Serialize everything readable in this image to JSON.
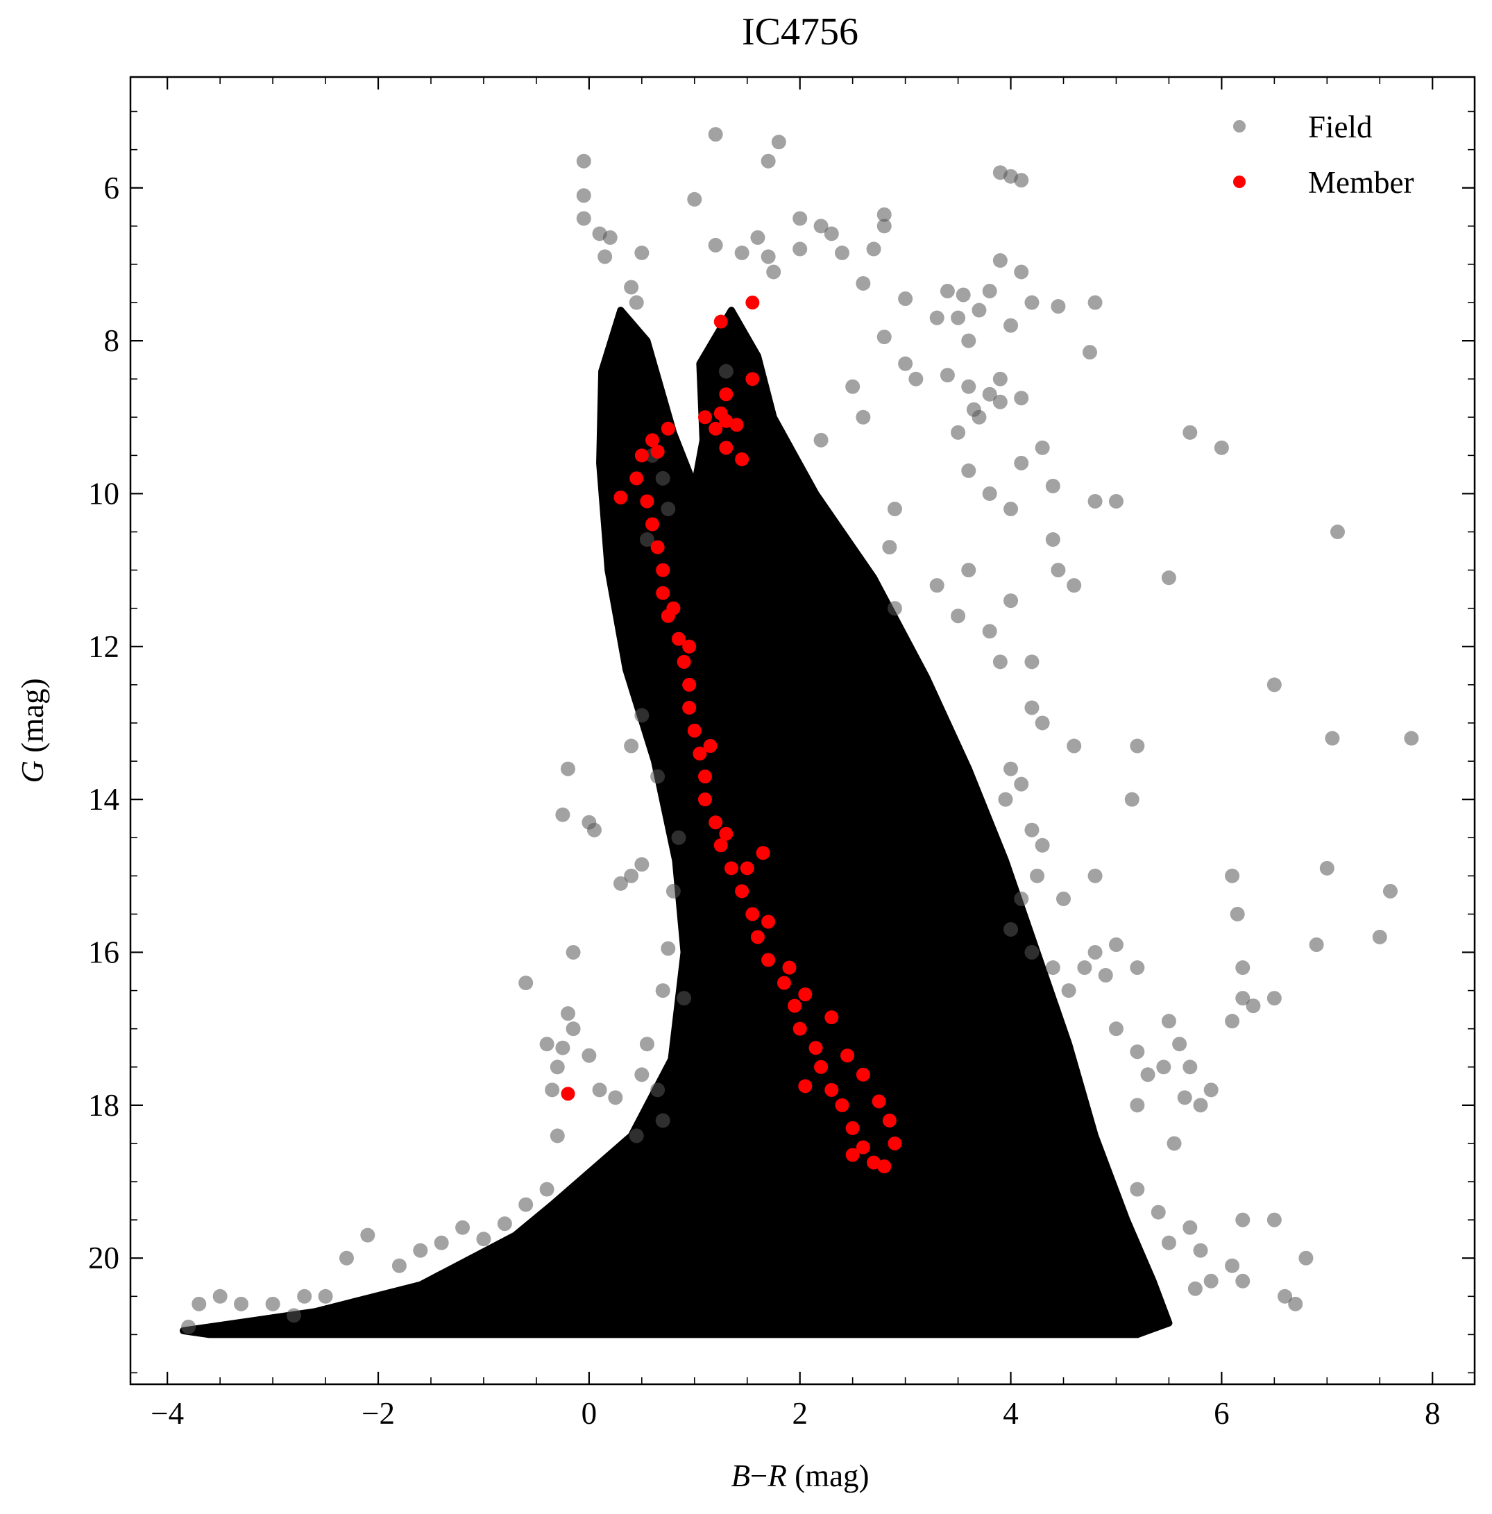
{
  "chart_data": {
    "type": "scatter",
    "title": "IC4756",
    "xlabel_italic": "B",
    "xlabel_minus": "−",
    "xlabel_italic2": "R",
    "xlabel_unit": " (mag)",
    "ylabel_italic": "G",
    "ylabel_unit": " (mag)",
    "xlim": [
      -4.35,
      8.4
    ],
    "ylim": [
      21.65,
      4.55
    ],
    "y_inverted": true,
    "xticks": [
      -4,
      -2,
      0,
      2,
      4,
      6,
      8
    ],
    "xtick_labels": [
      "−4",
      "−2",
      "0",
      "2",
      "4",
      "6",
      "8"
    ],
    "yticks": [
      6,
      8,
      10,
      12,
      14,
      16,
      18,
      20
    ],
    "ytick_labels": [
      "6",
      "8",
      "10",
      "12",
      "14",
      "16",
      "18",
      "20"
    ],
    "grid": false,
    "legend_position": "top-right",
    "colors": {
      "field": "#555555",
      "member": "#ff0000"
    },
    "series": [
      {
        "name": "Field",
        "alpha": 0.55,
        "dense_region": {
          "polygon": [
            [
              -3.85,
              20.95
            ],
            [
              -2.6,
              20.7
            ],
            [
              -1.6,
              20.35
            ],
            [
              -0.7,
              19.7
            ],
            [
              -0.35,
              19.3
            ],
            [
              0.4,
              18.4
            ],
            [
              0.78,
              17.4
            ],
            [
              0.9,
              16.0
            ],
            [
              0.82,
              14.8
            ],
            [
              0.62,
              13.5
            ],
            [
              0.35,
              12.3
            ],
            [
              0.18,
              11.0
            ],
            [
              0.1,
              9.6
            ],
            [
              0.12,
              8.4
            ],
            [
              0.3,
              7.6
            ],
            [
              0.55,
              8.0
            ],
            [
              0.8,
              9.2
            ],
            [
              1.0,
              9.9
            ],
            [
              1.08,
              9.3
            ],
            [
              1.05,
              8.3
            ],
            [
              1.35,
              7.6
            ],
            [
              1.6,
              8.2
            ],
            [
              1.75,
              9.0
            ],
            [
              2.15,
              10.0
            ],
            [
              2.7,
              11.1
            ],
            [
              3.2,
              12.4
            ],
            [
              3.6,
              13.6
            ],
            [
              3.95,
              14.8
            ],
            [
              4.25,
              16.0
            ],
            [
              4.55,
              17.2
            ],
            [
              4.8,
              18.4
            ],
            [
              5.1,
              19.5
            ],
            [
              5.35,
              20.3
            ],
            [
              5.5,
              20.85
            ],
            [
              5.2,
              21.0
            ],
            [
              -3.6,
              21.0
            ]
          ]
        },
        "points": [
          [
            -0.05,
            5.65
          ],
          [
            -0.05,
            6.1
          ],
          [
            -0.05,
            6.4
          ],
          [
            0.1,
            6.6
          ],
          [
            0.2,
            6.65
          ],
          [
            0.15,
            6.9
          ],
          [
            0.4,
            7.3
          ],
          [
            0.45,
            7.5
          ],
          [
            0.5,
            6.85
          ],
          [
            1.2,
            5.3
          ],
          [
            1.8,
            5.4
          ],
          [
            1.7,
            5.65
          ],
          [
            1.0,
            6.15
          ],
          [
            1.2,
            6.75
          ],
          [
            1.6,
            6.65
          ],
          [
            1.45,
            6.85
          ],
          [
            1.7,
            6.9
          ],
          [
            1.75,
            7.1
          ],
          [
            2.0,
            6.8
          ],
          [
            2.0,
            6.4
          ],
          [
            2.2,
            6.5
          ],
          [
            2.3,
            6.6
          ],
          [
            2.4,
            6.85
          ],
          [
            2.7,
            6.8
          ],
          [
            2.8,
            6.5
          ],
          [
            2.8,
            6.35
          ],
          [
            2.6,
            7.25
          ],
          [
            3.0,
            7.45
          ],
          [
            3.3,
            7.7
          ],
          [
            3.4,
            7.35
          ],
          [
            3.5,
            7.7
          ],
          [
            3.55,
            7.4
          ],
          [
            3.7,
            7.6
          ],
          [
            3.6,
            8.0
          ],
          [
            3.8,
            7.35
          ],
          [
            4.0,
            7.8
          ],
          [
            4.2,
            7.5
          ],
          [
            4.45,
            7.55
          ],
          [
            4.8,
            7.5
          ],
          [
            4.75,
            8.15
          ],
          [
            3.9,
            5.8
          ],
          [
            4.0,
            5.85
          ],
          [
            4.1,
            5.9
          ],
          [
            3.9,
            6.95
          ],
          [
            4.1,
            7.1
          ],
          [
            3.0,
            8.3
          ],
          [
            3.1,
            8.5
          ],
          [
            3.4,
            8.45
          ],
          [
            3.6,
            8.6
          ],
          [
            3.65,
            8.9
          ],
          [
            3.9,
            8.5
          ],
          [
            3.8,
            8.7
          ],
          [
            3.9,
            8.8
          ],
          [
            4.1,
            8.75
          ],
          [
            3.7,
            9.0
          ],
          [
            3.5,
            9.2
          ],
          [
            4.1,
            9.6
          ],
          [
            4.3,
            9.4
          ],
          [
            4.4,
            9.9
          ],
          [
            3.6,
            9.7
          ],
          [
            3.8,
            10.0
          ],
          [
            4.0,
            10.2
          ],
          [
            4.8,
            10.1
          ],
          [
            5.0,
            10.1
          ],
          [
            4.4,
            10.6
          ],
          [
            4.45,
            11.0
          ],
          [
            4.6,
            11.2
          ],
          [
            4.0,
            11.4
          ],
          [
            3.6,
            11.0
          ],
          [
            3.5,
            11.6
          ],
          [
            3.8,
            11.8
          ],
          [
            3.9,
            12.2
          ],
          [
            4.2,
            12.2
          ],
          [
            4.2,
            12.8
          ],
          [
            4.3,
            13.0
          ],
          [
            4.0,
            13.6
          ],
          [
            3.95,
            14.0
          ],
          [
            4.1,
            13.8
          ],
          [
            4.2,
            14.4
          ],
          [
            4.3,
            14.6
          ],
          [
            4.25,
            15.0
          ],
          [
            4.1,
            15.3
          ],
          [
            4.5,
            15.3
          ],
          [
            4.0,
            15.7
          ],
          [
            4.2,
            16.0
          ],
          [
            4.4,
            16.2
          ],
          [
            4.55,
            16.5
          ],
          [
            4.7,
            16.2
          ],
          [
            4.8,
            16.0
          ],
          [
            4.9,
            16.3
          ],
          [
            5.0,
            15.9
          ],
          [
            5.2,
            16.2
          ],
          [
            4.8,
            15.0
          ],
          [
            5.0,
            17.0
          ],
          [
            5.2,
            17.3
          ],
          [
            5.3,
            17.6
          ],
          [
            5.45,
            17.5
          ],
          [
            5.2,
            18.0
          ],
          [
            5.5,
            16.9
          ],
          [
            5.2,
            19.1
          ],
          [
            5.4,
            19.4
          ],
          [
            5.5,
            19.8
          ],
          [
            5.7,
            19.6
          ],
          [
            5.8,
            19.9
          ],
          [
            5.75,
            20.4
          ],
          [
            5.9,
            20.3
          ],
          [
            6.1,
            20.1
          ],
          [
            6.2,
            20.3
          ],
          [
            5.55,
            18.5
          ],
          [
            5.8,
            18.0
          ],
          [
            5.9,
            17.8
          ],
          [
            5.65,
            17.9
          ],
          [
            5.7,
            17.5
          ],
          [
            5.6,
            17.2
          ],
          [
            6.1,
            16.9
          ],
          [
            6.2,
            16.6
          ],
          [
            6.3,
            16.7
          ],
          [
            6.5,
            16.6
          ],
          [
            6.2,
            16.2
          ],
          [
            6.15,
            15.5
          ],
          [
            6.1,
            15.0
          ],
          [
            6.9,
            15.9
          ],
          [
            7.5,
            15.8
          ],
          [
            7.0,
            14.9
          ],
          [
            7.6,
            15.2
          ],
          [
            5.7,
            9.2
          ],
          [
            6.0,
            9.4
          ],
          [
            5.5,
            11.1
          ],
          [
            7.1,
            10.5
          ],
          [
            6.5,
            12.5
          ],
          [
            7.05,
            13.2
          ],
          [
            7.8,
            13.2
          ],
          [
            5.2,
            13.3
          ],
          [
            5.15,
            14.0
          ],
          [
            4.6,
            13.3
          ],
          [
            6.2,
            19.5
          ],
          [
            6.5,
            19.5
          ],
          [
            6.6,
            20.5
          ],
          [
            6.7,
            20.6
          ],
          [
            6.8,
            20.0
          ],
          [
            1.3,
            8.4
          ],
          [
            2.8,
            7.95
          ],
          [
            2.5,
            8.6
          ],
          [
            2.6,
            9.0
          ],
          [
            2.2,
            9.3
          ],
          [
            2.85,
            10.7
          ],
          [
            2.9,
            11.5
          ],
          [
            3.3,
            11.2
          ],
          [
            2.9,
            10.2
          ],
          [
            -3.8,
            20.9
          ],
          [
            -3.7,
            20.6
          ],
          [
            -3.5,
            20.5
          ],
          [
            -3.3,
            20.6
          ],
          [
            -3.0,
            20.6
          ],
          [
            -2.8,
            20.75
          ],
          [
            -2.7,
            20.5
          ],
          [
            -2.5,
            20.5
          ],
          [
            -2.3,
            20.0
          ],
          [
            -2.1,
            19.7
          ],
          [
            -1.8,
            20.1
          ],
          [
            -1.6,
            19.9
          ],
          [
            -1.4,
            19.8
          ],
          [
            -1.2,
            19.6
          ],
          [
            -1.0,
            19.75
          ],
          [
            -0.8,
            19.55
          ],
          [
            -0.6,
            19.3
          ],
          [
            -0.4,
            19.1
          ],
          [
            -0.3,
            18.4
          ],
          [
            -0.35,
            17.8
          ],
          [
            -0.25,
            17.25
          ],
          [
            -0.15,
            17.0
          ],
          [
            -0.3,
            17.5
          ],
          [
            -0.4,
            17.2
          ],
          [
            0.0,
            17.35
          ],
          [
            0.1,
            17.8
          ],
          [
            0.25,
            17.9
          ],
          [
            0.45,
            18.4
          ],
          [
            0.5,
            17.6
          ],
          [
            0.55,
            17.2
          ],
          [
            0.65,
            17.8
          ],
          [
            0.7,
            18.2
          ],
          [
            -0.2,
            16.8
          ],
          [
            -0.15,
            16.0
          ],
          [
            -0.6,
            16.4
          ],
          [
            -0.25,
            14.2
          ],
          [
            -0.2,
            13.6
          ],
          [
            0.0,
            14.3
          ],
          [
            0.05,
            14.4
          ],
          [
            0.3,
            15.1
          ],
          [
            0.4,
            15.0
          ],
          [
            0.5,
            14.85
          ],
          [
            0.65,
            13.7
          ],
          [
            0.4,
            13.3
          ],
          [
            0.5,
            12.9
          ],
          [
            0.85,
            14.5
          ],
          [
            0.8,
            15.2
          ],
          [
            0.75,
            15.95
          ],
          [
            0.7,
            16.5
          ],
          [
            0.9,
            16.6
          ],
          [
            0.6,
            9.5
          ],
          [
            0.7,
            9.8
          ],
          [
            0.75,
            10.2
          ],
          [
            0.55,
            10.6
          ]
        ]
      },
      {
        "name": "Member",
        "alpha": 1.0,
        "points": [
          [
            1.25,
            7.75
          ],
          [
            1.55,
            7.5
          ],
          [
            1.55,
            8.5
          ],
          [
            1.3,
            8.7
          ],
          [
            1.25,
            8.95
          ],
          [
            1.1,
            9.0
          ],
          [
            1.3,
            9.05
          ],
          [
            1.4,
            9.1
          ],
          [
            1.2,
            9.15
          ],
          [
            1.3,
            9.4
          ],
          [
            1.45,
            9.55
          ],
          [
            0.75,
            9.15
          ],
          [
            0.6,
            9.3
          ],
          [
            0.5,
            9.5
          ],
          [
            0.45,
            9.8
          ],
          [
            0.3,
            10.05
          ],
          [
            0.65,
            9.45
          ],
          [
            0.55,
            10.1
          ],
          [
            0.6,
            10.4
          ],
          [
            0.65,
            10.7
          ],
          [
            0.7,
            11.0
          ],
          [
            0.7,
            11.3
          ],
          [
            0.75,
            11.6
          ],
          [
            0.85,
            11.9
          ],
          [
            0.9,
            12.2
          ],
          [
            0.95,
            12.5
          ],
          [
            0.95,
            12.8
          ],
          [
            1.0,
            13.1
          ],
          [
            1.05,
            13.4
          ],
          [
            1.1,
            13.7
          ],
          [
            1.1,
            14.0
          ],
          [
            1.2,
            14.3
          ],
          [
            1.25,
            14.6
          ],
          [
            1.35,
            14.9
          ],
          [
            1.45,
            15.2
          ],
          [
            1.55,
            15.5
          ],
          [
            1.6,
            15.8
          ],
          [
            1.7,
            16.1
          ],
          [
            1.85,
            16.4
          ],
          [
            1.95,
            16.7
          ],
          [
            2.0,
            17.0
          ],
          [
            2.15,
            17.25
          ],
          [
            2.2,
            17.5
          ],
          [
            2.3,
            17.8
          ],
          [
            2.4,
            18.0
          ],
          [
            2.5,
            18.3
          ],
          [
            2.6,
            18.55
          ],
          [
            2.7,
            18.75
          ],
          [
            2.8,
            18.8
          ],
          [
            2.9,
            18.5
          ],
          [
            2.85,
            18.2
          ],
          [
            2.75,
            17.95
          ],
          [
            2.6,
            17.6
          ],
          [
            2.45,
            17.35
          ],
          [
            2.3,
            16.85
          ],
          [
            2.05,
            16.55
          ],
          [
            1.9,
            16.2
          ],
          [
            1.7,
            15.6
          ],
          [
            1.5,
            14.9
          ],
          [
            1.65,
            14.7
          ],
          [
            1.3,
            14.45
          ],
          [
            1.15,
            13.3
          ],
          [
            0.95,
            12.0
          ],
          [
            0.8,
            11.5
          ],
          [
            -0.2,
            17.85
          ],
          [
            2.05,
            17.75
          ],
          [
            2.5,
            18.65
          ]
        ]
      }
    ]
  }
}
